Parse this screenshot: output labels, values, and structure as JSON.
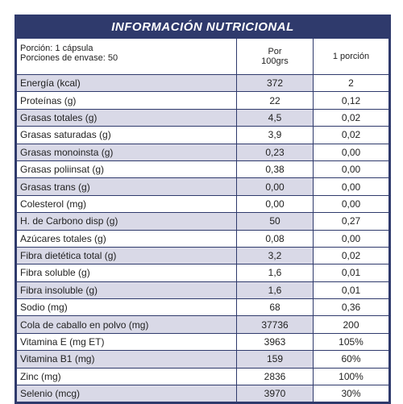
{
  "header": {
    "title": "INFORMACIÓN NUTRICIONAL",
    "portion": [
      "Porción: 1 cápsula",
      "Porciones de envase: 50"
    ],
    "col_100g": [
      "Por",
      "100grs"
    ],
    "col_portion": "1 porción"
  },
  "table": {
    "rows": [
      [
        "Energía (kcal)",
        "372",
        "2"
      ],
      [
        "Proteínas (g)",
        "22",
        "0,12"
      ],
      [
        "Grasas totales (g)",
        "4,5",
        "0,02"
      ],
      [
        "Grasas saturadas (g)",
        "3,9",
        "0,02"
      ],
      [
        "Grasas monoinsta (g)",
        "0,23",
        "0,00"
      ],
      [
        "Grasas poliinsat (g)",
        "0,38",
        "0,00"
      ],
      [
        "Grasas trans (g)",
        "0,00",
        "0,00"
      ],
      [
        "Colesterol (mg)",
        "0,00",
        "0,00"
      ],
      [
        "H. de Carbono disp (g)",
        "50",
        "0,27"
      ],
      [
        "Azúcares totales (g)",
        "0,08",
        "0,00"
      ],
      [
        "Fibra dietética total (g)",
        "3,2",
        "0,02"
      ],
      [
        "Fibra soluble (g)",
        "1,6",
        "0,01"
      ],
      [
        "Fibra insoluble (g)",
        "1,6",
        "0,01"
      ],
      [
        "Sodio (mg)",
        "68",
        "0,36"
      ],
      [
        "Cola de caballo en polvo (mg)",
        "37736",
        "200"
      ],
      [
        "Vitamina E (mg ET)",
        "3963",
        "105%"
      ],
      [
        "Vitamina B1 (mg)",
        "159",
        "60%"
      ],
      [
        "Zinc (mg)",
        "2836",
        "100%"
      ],
      [
        "Selenio (mcg)",
        "3970",
        "30%"
      ]
    ]
  }
}
